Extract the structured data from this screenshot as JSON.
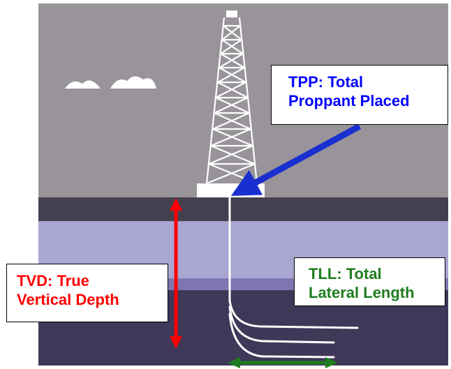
{
  "colors": {
    "sky": "#98949a",
    "ground_top": "#444050",
    "layer_light": "#a9a6d2",
    "layer_mid": "#7e76b0",
    "layer_deep": "#3f3858",
    "tpp_text": "#0000ff",
    "tpp_arrow": "#1a2fd0",
    "tvd": "#ff0000",
    "tll": "#1e7d1e"
  },
  "labels": {
    "tpp": {
      "line1": "TPP: Total",
      "line2": "Proppant Placed"
    },
    "tvd": {
      "line1": "TVD: True",
      "line2": "Vertical Depth"
    },
    "tll": {
      "line1": "TLL: Total",
      "line2": "Lateral Length"
    }
  },
  "icons": [
    "drilling-rig-icon",
    "cloud-icon",
    "well-bore-icon"
  ]
}
